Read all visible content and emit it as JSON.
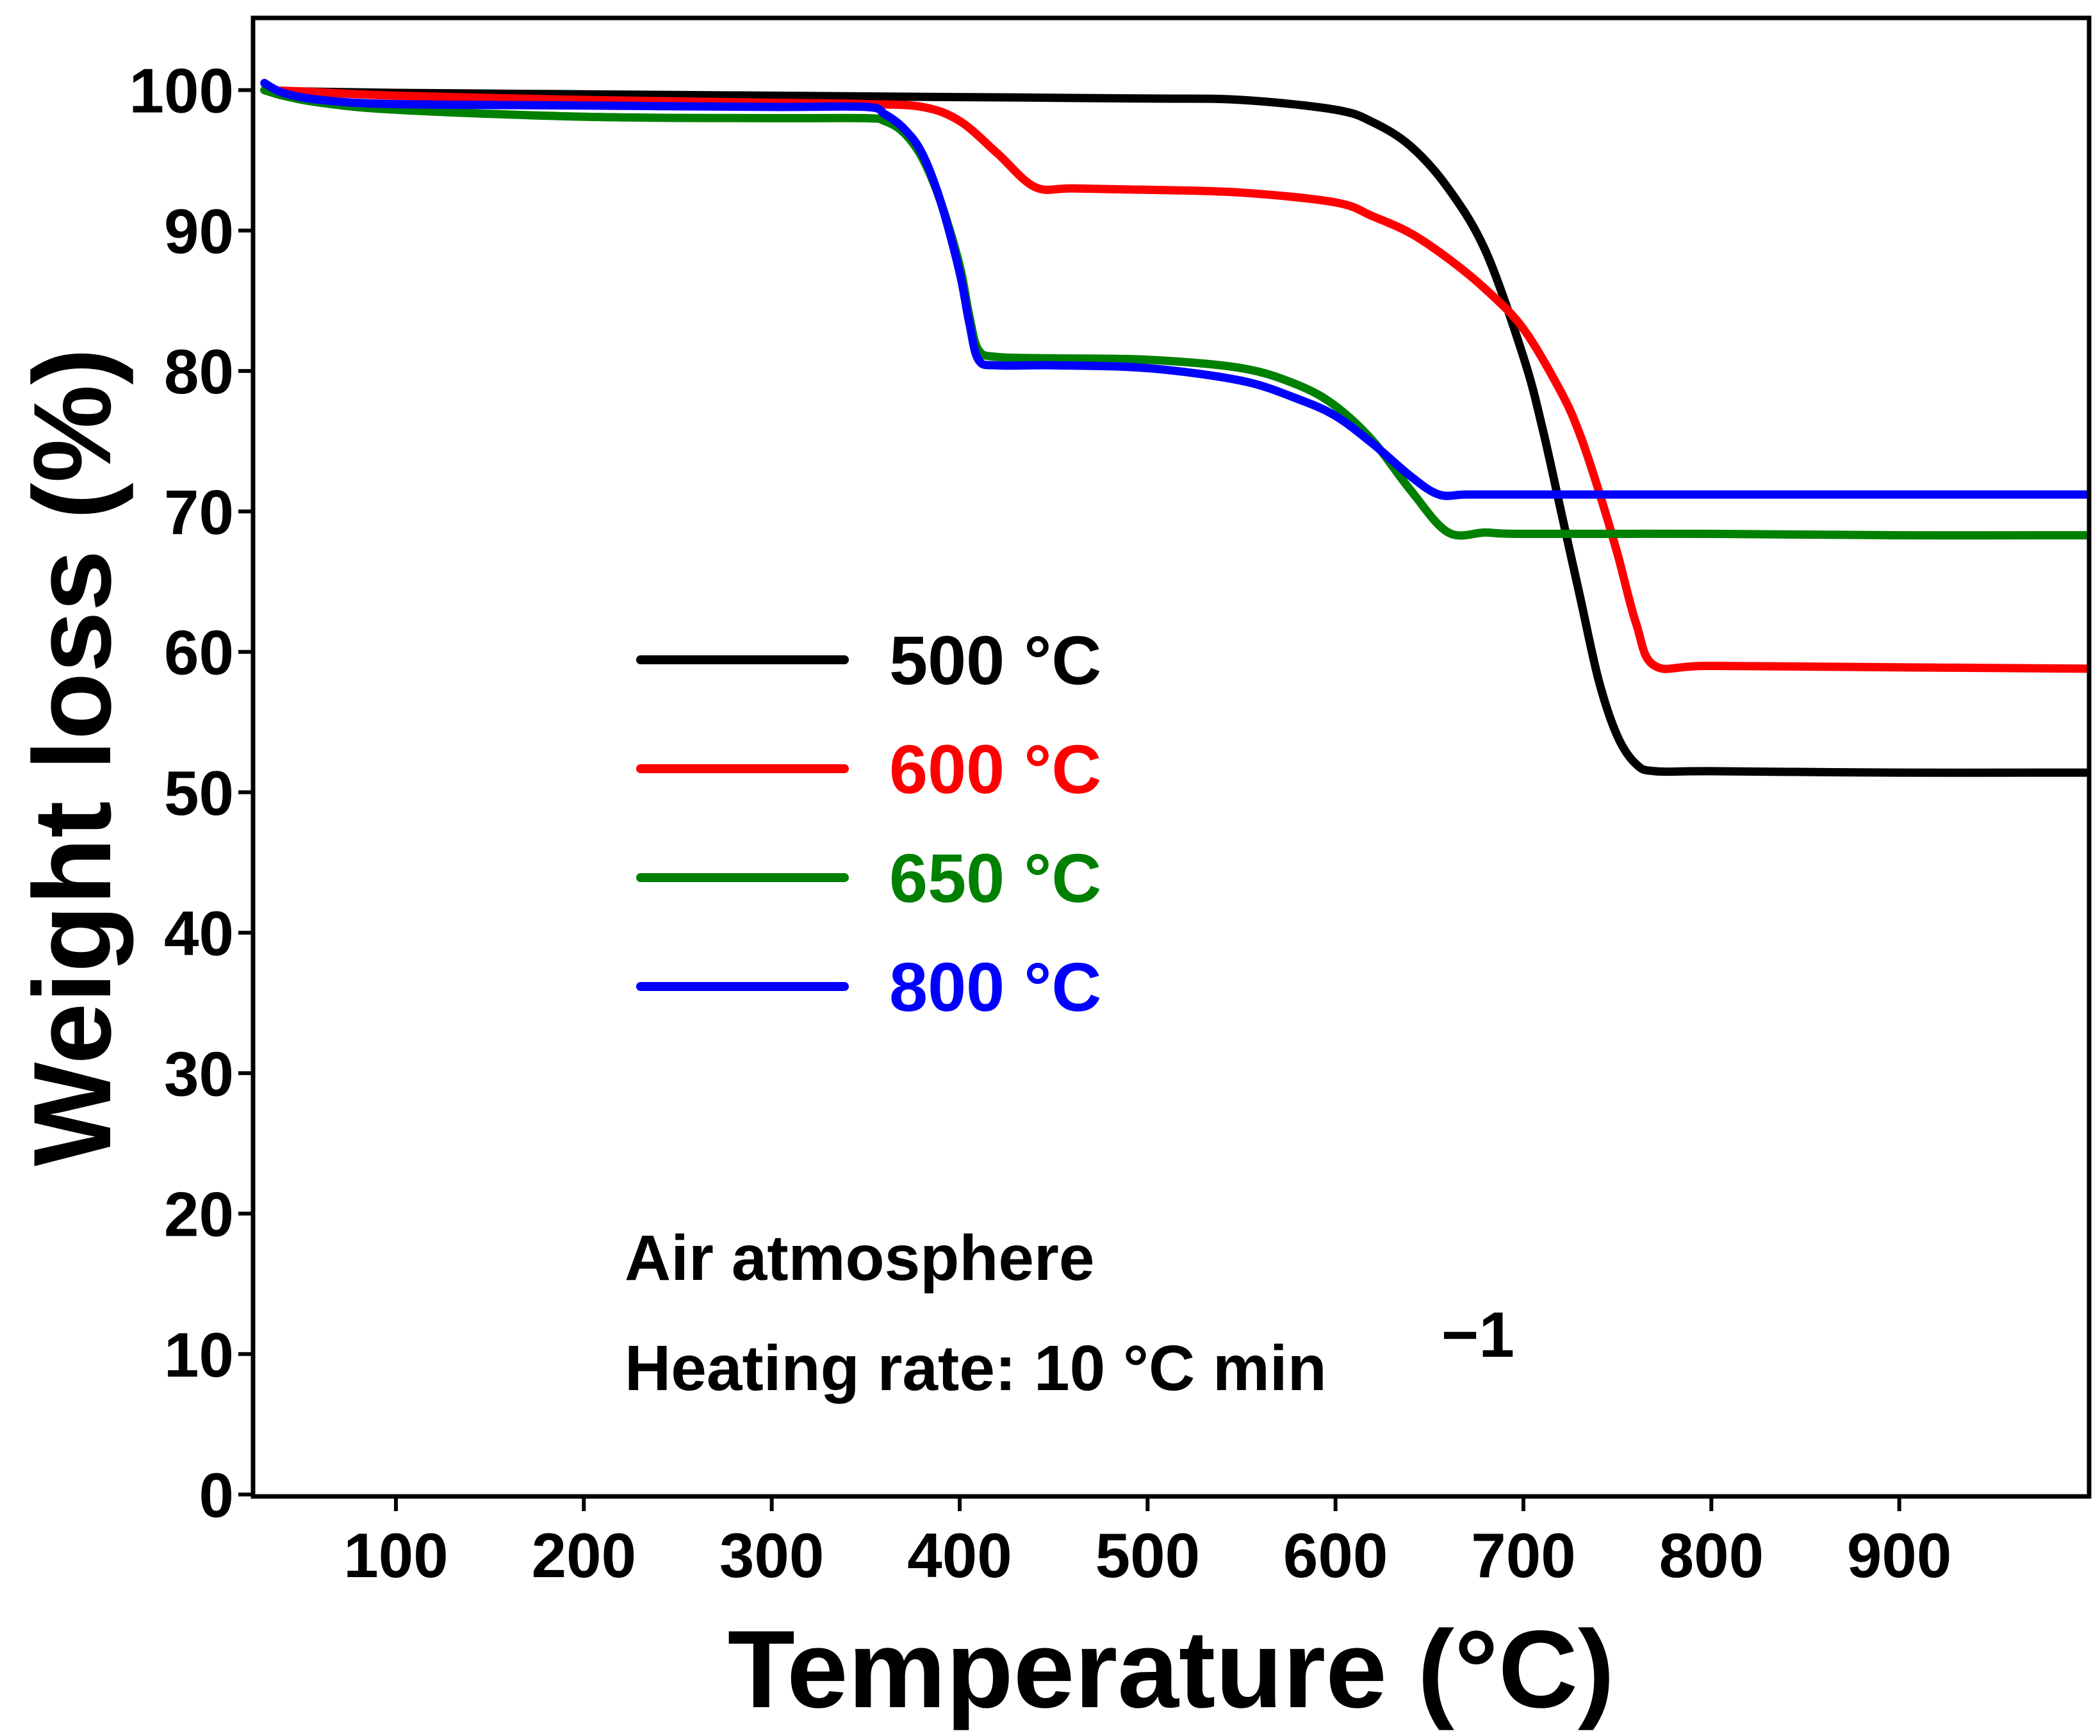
{
  "chart_data": {
    "type": "line",
    "title": "",
    "xlabel": "Temperature (°C)",
    "ylabel": "Weight loss (%)",
    "xlim": [
      25,
      1000
    ],
    "ylim": [
      0,
      105
    ],
    "x_ticks": [
      100,
      200,
      300,
      400,
      500,
      600,
      700,
      800,
      900
    ],
    "x_tick_labels": [
      "100",
      "200",
      "300",
      "400",
      "500",
      "600",
      "700",
      "800",
      "900"
    ],
    "y_ticks": [
      0,
      10,
      20,
      30,
      40,
      50,
      60,
      70,
      80,
      90,
      100
    ],
    "y_tick_labels": [
      "0",
      "10",
      "20",
      "30",
      "40",
      "50",
      "60",
      "70",
      "80",
      "90",
      "100"
    ],
    "grid": false,
    "legend_position": "center-left",
    "annotations": [
      "Air atmosphere",
      "Heating rate: 10 °C min",
      "−1"
    ],
    "series": [
      {
        "name": "500 °C",
        "color": "#000000",
        "x": [
          30,
          50,
          100,
          200,
          300,
          400,
          500,
          550,
          600,
          620,
          640,
          660,
          680,
          700,
          710,
          720,
          730,
          740,
          750,
          760,
          770,
          800,
          900,
          1000
        ],
        "y": [
          100,
          99.9,
          99.8,
          99.7,
          99.6,
          99.5,
          99.4,
          99.3,
          98.6,
          97.7,
          96,
          93,
          88.5,
          81,
          76,
          70,
          64,
          58,
          54,
          52,
          51.5,
          51.5,
          51.4,
          51.4
        ]
      },
      {
        "name": "600 °C",
        "color": "#ff0000",
        "x": [
          30,
          50,
          100,
          200,
          300,
          350,
          380,
          400,
          420,
          440,
          460,
          500,
          550,
          600,
          620,
          640,
          660,
          680,
          700,
          720,
          730,
          740,
          750,
          760,
          770,
          800,
          900,
          1000
        ],
        "y": [
          100,
          99.9,
          99.6,
          99.3,
          99.1,
          99,
          98.8,
          97.8,
          95.5,
          93.1,
          93,
          92.9,
          92.7,
          92,
          91,
          89.8,
          88,
          85.8,
          83,
          78.5,
          75.5,
          71.5,
          67,
          62,
          59,
          59,
          58.9,
          58.8
        ]
      },
      {
        "name": "650 °C",
        "color": "#008000",
        "x": [
          30,
          40,
          60,
          100,
          200,
          300,
          350,
          360,
          370,
          380,
          390,
          400,
          405,
          410,
          420,
          450,
          500,
          550,
          580,
          600,
          620,
          640,
          660,
          680,
          700,
          800,
          900,
          1000
        ],
        "y": [
          100,
          99.6,
          99.1,
          98.6,
          98.1,
          98,
          98,
          97.8,
          97,
          95.2,
          92,
          87.5,
          84,
          81.5,
          81,
          80.9,
          80.8,
          80.2,
          79,
          77.5,
          75,
          71.5,
          68.5,
          68.5,
          68.4,
          68.4,
          68.3,
          68.3
        ]
      },
      {
        "name": "800 °C",
        "color": "#0000ff",
        "x": [
          30,
          40,
          60,
          100,
          200,
          300,
          350,
          360,
          370,
          380,
          390,
          400,
          405,
          410,
          420,
          450,
          500,
          550,
          580,
          600,
          620,
          640,
          655,
          670,
          700,
          800,
          900,
          1000
        ],
        "y": [
          100.5,
          99.8,
          99.3,
          99,
          98.9,
          98.8,
          98.8,
          98.3,
          97.3,
          95.5,
          92,
          87,
          83.5,
          80.8,
          80.4,
          80.4,
          80.2,
          79.3,
          78,
          76.8,
          74.8,
          72.5,
          71.2,
          71.2,
          71.2,
          71.2,
          71.2,
          71.2
        ]
      }
    ]
  }
}
